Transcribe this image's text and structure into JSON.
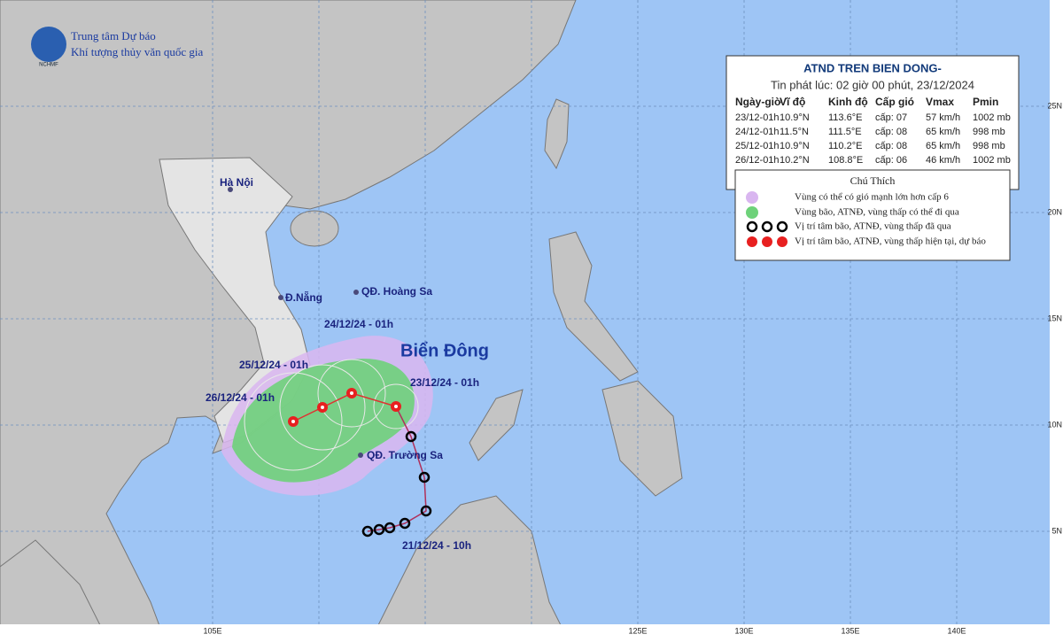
{
  "header": {
    "logo": "NCHMF",
    "line1": "Trung tâm Dự báo",
    "line2": "Khí tượng thủy văn quốc gia"
  },
  "info_box": {
    "title": "ATND TREN BIEN DONG-",
    "subtitle": "Tin phát lúc: 02 giờ 00 phút, 23/12/2024",
    "columns": [
      "Ngày-giờ",
      "Vĩ độ",
      "Kinh độ",
      "Cấp gió",
      "Vmax",
      "Pmin"
    ],
    "rows": [
      [
        "23/12-01h",
        "10.9°N",
        "113.6°E",
        "cấp: 07",
        "57 km/h",
        "1002 mb"
      ],
      [
        "24/12-01h",
        "11.5°N",
        "111.5°E",
        "cấp: 08",
        "65 km/h",
        "998 mb"
      ],
      [
        "25/12-01h",
        "10.9°N",
        "110.2°E",
        "cấp: 08",
        "65 km/h",
        "998 mb"
      ],
      [
        "26/12-01h",
        "10.2°N",
        "108.8°E",
        "cấp: 06",
        "46 km/h",
        "1002 mb"
      ]
    ]
  },
  "legend": {
    "title": "Chú Thích",
    "items": [
      "Vùng có thể có gió mạnh lớn hơn cấp 6",
      "Vùng bão, ATNĐ, vùng thấp có thể đi qua",
      "Vị trí tâm bão, ATNĐ, vùng thấp đã qua",
      "Vị trí tâm bão, ATNĐ, vùng thấp hiện tại, dự báo"
    ]
  },
  "places": [
    "Hà Nội",
    "Đ.Nẵng",
    "QĐ. Hoàng Sa",
    "QĐ. Trường Sa"
  ],
  "sea_label": "Biển Đông",
  "track_labels": [
    "24/12/24 - 01h",
    "25/12/24 - 01h",
    "26/12/24 - 01h",
    "23/12/24 - 01h",
    "21/12/24 - 10h"
  ],
  "lon_ticks": [
    "105E",
    "125E",
    "130E",
    "135E",
    "140E"
  ],
  "lat_ticks": [
    "25N",
    "20N",
    "15N",
    "10N",
    "5N"
  ]
}
